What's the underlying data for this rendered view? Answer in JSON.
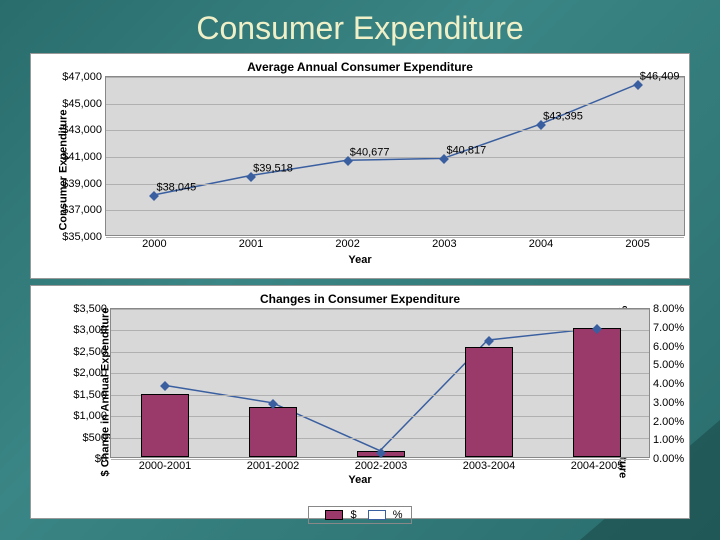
{
  "slide": {
    "title": "Consumer Expenditure"
  },
  "chart1": {
    "type": "line",
    "title": "Average Annual Consumer Expenditure",
    "xlabel": "Year",
    "ylabel": "Consumer Expenditure",
    "categories": [
      "2000",
      "2001",
      "2002",
      "2003",
      "2004",
      "2005"
    ],
    "values": [
      38045,
      39518,
      40677,
      40817,
      43395,
      46409
    ],
    "value_labels": [
      "$38,045",
      "$39,518",
      "$40,677",
      "$40,817",
      "$43,395",
      "$46,409"
    ],
    "ymin": 35000,
    "ymax": 47000,
    "ystep": 2000,
    "yticks": [
      "$35,000",
      "$37,000",
      "$39,000",
      "$41,000",
      "$43,000",
      "$45,000",
      "$47,000"
    ],
    "line_color": "#3a5fa0",
    "marker_color": "#3a5fa0",
    "plot_bg": "#d8d8d8",
    "grid_color": "#b0b0b0",
    "title_fontsize": 12,
    "label_fontsize": 11
  },
  "chart2": {
    "type": "bar+line",
    "title": "Changes in Consumer Expenditure",
    "xlabel": "Year",
    "ylabel_left": "$ Change in Annual Expenditure",
    "ylabel_right": "% Change in Annual Expenditure",
    "categories": [
      "2000-2001",
      "2001-2002",
      "2002-2003",
      "2003-2004",
      "2004-2005"
    ],
    "bar_values": [
      1473,
      1159,
      140,
      2578,
      3014
    ],
    "pct_values": [
      3.87,
      2.93,
      0.34,
      6.32,
      6.95
    ],
    "y1min": 0,
    "y1max": 3500,
    "y1step": 500,
    "y1ticks": [
      "$0",
      "$500",
      "$1,000",
      "$1,500",
      "$2,000",
      "$2,500",
      "$3,000",
      "$3,500"
    ],
    "y2min": 0,
    "y2max": 8,
    "y2step": 1,
    "y2ticks": [
      "0.00%",
      "1.00%",
      "2.00%",
      "3.00%",
      "4.00%",
      "5.00%",
      "6.00%",
      "7.00%",
      "8.00%"
    ],
    "bar_color": "#9a3a6a",
    "line_color": "#3a5fa0",
    "plot_bg": "#d8d8d8",
    "grid_color": "#b0b0b0",
    "legend": {
      "series1": "$",
      "series2": "%"
    }
  }
}
